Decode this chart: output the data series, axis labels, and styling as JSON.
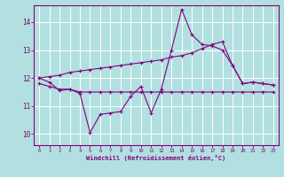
{
  "xlabel": "Windchill (Refroidissement éolien,°C)",
  "background_color": "#b2e0e0",
  "grid_color": "#ffffff",
  "line_color": "#800080",
  "x_ticks": [
    0,
    1,
    2,
    3,
    4,
    5,
    6,
    7,
    8,
    9,
    10,
    11,
    12,
    13,
    14,
    15,
    16,
    17,
    18,
    19,
    20,
    21,
    22,
    23
  ],
  "y_ticks": [
    10,
    11,
    12,
    13,
    14
  ],
  "ylim": [
    9.6,
    14.6
  ],
  "xlim": [
    -0.5,
    23.5
  ],
  "line1_x": [
    0,
    1,
    2,
    3,
    4,
    5,
    6,
    7,
    8,
    9,
    10,
    11,
    12,
    13,
    14,
    15,
    16,
    17,
    18,
    19,
    20,
    21,
    22,
    23
  ],
  "line1_y": [
    12.0,
    11.85,
    11.55,
    11.6,
    11.45,
    10.05,
    10.7,
    10.75,
    10.8,
    11.35,
    11.7,
    10.75,
    11.6,
    13.0,
    14.45,
    13.55,
    13.2,
    13.15,
    13.0,
    12.45,
    11.8,
    11.85,
    11.8,
    11.75
  ],
  "line2_x": [
    0,
    1,
    2,
    3,
    4,
    5,
    6,
    7,
    8,
    9,
    10,
    11,
    12,
    13,
    14,
    15,
    16,
    17,
    18,
    19,
    20,
    21,
    22,
    23
  ],
  "line2_y": [
    11.8,
    11.7,
    11.6,
    11.6,
    11.5,
    11.5,
    11.5,
    11.5,
    11.5,
    11.5,
    11.5,
    11.5,
    11.5,
    11.5,
    11.5,
    11.5,
    11.5,
    11.5,
    11.5,
    11.5,
    11.5,
    11.5,
    11.5,
    11.5
  ],
  "line3_x": [
    0,
    1,
    2,
    3,
    4,
    5,
    6,
    7,
    8,
    9,
    10,
    11,
    12,
    13,
    14,
    15,
    16,
    17,
    18,
    19,
    20,
    21,
    22,
    23
  ],
  "line3_y": [
    12.0,
    12.05,
    12.1,
    12.2,
    12.25,
    12.3,
    12.35,
    12.4,
    12.45,
    12.5,
    12.55,
    12.6,
    12.65,
    12.75,
    12.8,
    12.9,
    13.05,
    13.2,
    13.3,
    12.45,
    11.8,
    11.85,
    11.8,
    11.75
  ]
}
